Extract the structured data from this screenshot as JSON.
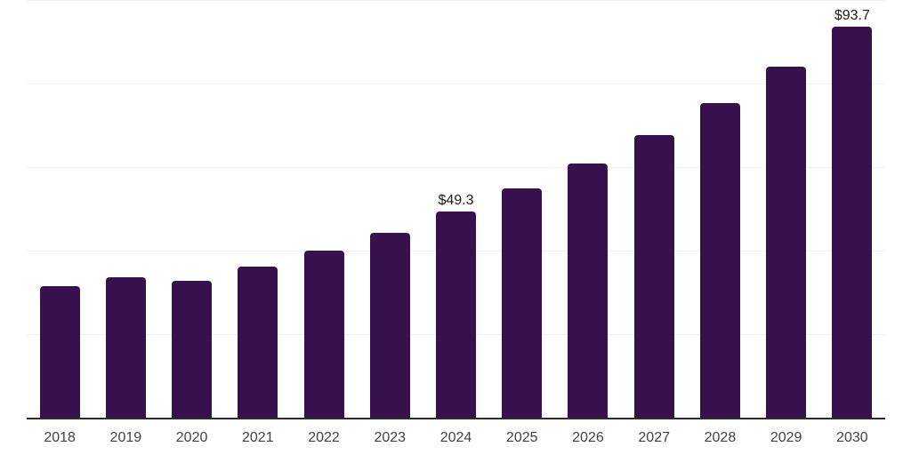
{
  "chart_data": {
    "type": "bar",
    "title": "",
    "xlabel": "",
    "ylabel": "",
    "categories": [
      "2018",
      "2019",
      "2020",
      "2021",
      "2022",
      "2023",
      "2024",
      "2025",
      "2026",
      "2027",
      "2028",
      "2029",
      "2030"
    ],
    "values": [
      31.4,
      33.7,
      32.7,
      36.1,
      40.1,
      44.3,
      49.3,
      54.8,
      60.9,
      67.7,
      75.4,
      84.1,
      93.7
    ],
    "data_labels": [
      {
        "category": "2024",
        "text": "$49.3"
      },
      {
        "category": "2030",
        "text": "$93.7"
      }
    ],
    "ylim": [
      0,
      100
    ],
    "gridline_values": [
      20,
      40,
      60,
      80,
      100
    ],
    "y_tick_labels_shown": false,
    "grid": true,
    "legend": "none",
    "colors": {
      "bar": "#36114e",
      "gridline": "#f1f1f1",
      "axis_line": "#2b2b2b",
      "x_tick_label": "#424242",
      "value_label": "#1a1a1a",
      "background": "#ffffff"
    }
  }
}
